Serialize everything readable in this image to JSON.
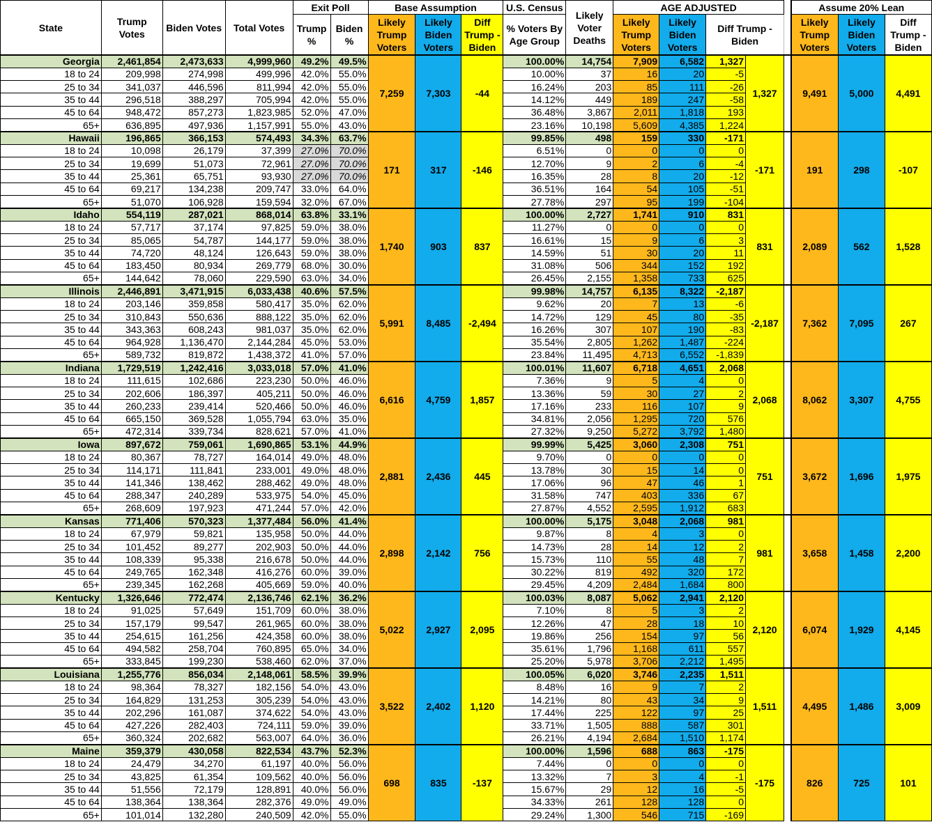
{
  "header": {
    "state": "State",
    "trump_votes": "Trump Votes",
    "biden_votes": "Biden Votes",
    "total_votes": "Total Votes",
    "exit_poll": "Exit Poll",
    "exit_trump": "Trump %",
    "exit_biden": "Biden %",
    "base_assumption": "Base Assumption",
    "likely_trump": "Likely Trump Voters",
    "likely_biden": "Likely Biden Voters",
    "diff": "Diff Trump - Biden",
    "us_census": "U.S. Census",
    "pct_voters": "% Voters By Age Group",
    "deaths": "Likely Voter Deaths",
    "age_adjusted": "AGE ADJUSTED",
    "lean": "Assume 20% Lean"
  },
  "colors": {
    "green": "#d3e3bd",
    "orange": "#ffb81c",
    "blue": "#12abeb",
    "yellow": "#ffff00"
  },
  "states": [
    {
      "name": "Georgia",
      "summary": [
        "2,461,854",
        "2,473,633",
        "4,999,960",
        "49.2%",
        "49.5%",
        "100.00%",
        "14,754",
        "7,909",
        "6,582",
        "1,327"
      ],
      "rows": [
        [
          "18 to 24",
          "209,998",
          "274,998",
          "499,996",
          "42.0%",
          "55.0%",
          "10.00%",
          "37",
          "16",
          "20",
          "-5"
        ],
        [
          "25 to 34",
          "341,037",
          "446,596",
          "811,994",
          "42.0%",
          "55.0%",
          "16.24%",
          "203",
          "85",
          "111",
          "-26"
        ],
        [
          "35 to 44",
          "296,518",
          "388,297",
          "705,994",
          "42.0%",
          "55.0%",
          "14.12%",
          "449",
          "189",
          "247",
          "-58"
        ],
        [
          "45 to 64",
          "948,472",
          "857,273",
          "1,823,985",
          "52.0%",
          "47.0%",
          "36.48%",
          "3,867",
          "2,011",
          "1,818",
          "193"
        ],
        [
          "65+",
          "636,895",
          "497,936",
          "1,157,991",
          "55.0%",
          "43.0%",
          "23.16%",
          "10,198",
          "5,609",
          "4,385",
          "1,224"
        ]
      ],
      "base": [
        "7,259",
        "7,303",
        "-44"
      ],
      "adj_total": "1,327",
      "lean": [
        "9,491",
        "5,000",
        "4,491"
      ]
    },
    {
      "name": "Hawaii",
      "summary": [
        "196,865",
        "366,153",
        "574,493",
        "34.3%",
        "63.7%",
        "99.85%",
        "498",
        "159",
        "330",
        "-171"
      ],
      "rows": [
        [
          "18 to 24",
          "10,098",
          "26,179",
          "37,399",
          "27.0%",
          "70.0%",
          "6.51%",
          "0",
          "0",
          "0",
          "0"
        ],
        [
          "25 to 34",
          "19,699",
          "51,073",
          "72,961",
          "27.0%",
          "70.0%",
          "12.70%",
          "9",
          "2",
          "6",
          "-4"
        ],
        [
          "35 to 44",
          "25,361",
          "65,751",
          "93,930",
          "27.0%",
          "70.0%",
          "16.35%",
          "28",
          "8",
          "20",
          "-12"
        ],
        [
          "45 to 64",
          "69,217",
          "134,238",
          "209,747",
          "33.0%",
          "64.0%",
          "36.51%",
          "164",
          "54",
          "105",
          "-51"
        ],
        [
          "65+",
          "51,070",
          "106,928",
          "159,594",
          "32.0%",
          "67.0%",
          "27.78%",
          "297",
          "95",
          "199",
          "-104"
        ]
      ],
      "estimated_rows": 3,
      "base": [
        "171",
        "317",
        "-146"
      ],
      "adj_total": "-171",
      "lean": [
        "191",
        "298",
        "-107"
      ]
    },
    {
      "name": "Idaho",
      "summary": [
        "554,119",
        "287,021",
        "868,014",
        "63.8%",
        "33.1%",
        "100.00%",
        "2,727",
        "1,741",
        "910",
        "831"
      ],
      "rows": [
        [
          "18 to 24",
          "57,717",
          "37,174",
          "97,825",
          "59.0%",
          "38.0%",
          "11.27%",
          "0",
          "0",
          "0",
          "0"
        ],
        [
          "25 to 34",
          "85,065",
          "54,787",
          "144,177",
          "59.0%",
          "38.0%",
          "16.61%",
          "15",
          "9",
          "6",
          "3"
        ],
        [
          "35 to 44",
          "74,720",
          "48,124",
          "126,643",
          "59.0%",
          "38.0%",
          "14.59%",
          "51",
          "30",
          "20",
          "11"
        ],
        [
          "45 to 64",
          "183,450",
          "80,934",
          "269,779",
          "68.0%",
          "30.0%",
          "31.08%",
          "506",
          "344",
          "152",
          "192"
        ],
        [
          "65+",
          "144,642",
          "78,060",
          "229,590",
          "63.0%",
          "34.0%",
          "26.45%",
          "2,155",
          "1,358",
          "733",
          "625"
        ]
      ],
      "base": [
        "1,740",
        "903",
        "837"
      ],
      "adj_total": "831",
      "lean": [
        "2,089",
        "562",
        "1,528"
      ]
    },
    {
      "name": "Illinois",
      "summary": [
        "2,446,891",
        "3,471,915",
        "6,033,438",
        "40.6%",
        "57.5%",
        "99.98%",
        "14,757",
        "6,135",
        "8,322",
        "-2,187"
      ],
      "rows": [
        [
          "18 to 24",
          "203,146",
          "359,858",
          "580,417",
          "35.0%",
          "62.0%",
          "9.62%",
          "20",
          "7",
          "13",
          "-6"
        ],
        [
          "25 to 34",
          "310,843",
          "550,636",
          "888,122",
          "35.0%",
          "62.0%",
          "14.72%",
          "129",
          "45",
          "80",
          "-35"
        ],
        [
          "35 to 44",
          "343,363",
          "608,243",
          "981,037",
          "35.0%",
          "62.0%",
          "16.26%",
          "307",
          "107",
          "190",
          "-83"
        ],
        [
          "45 to 64",
          "964,928",
          "1,136,470",
          "2,144,284",
          "45.0%",
          "53.0%",
          "35.54%",
          "2,805",
          "1,262",
          "1,487",
          "-224"
        ],
        [
          "65+",
          "589,732",
          "819,872",
          "1,438,372",
          "41.0%",
          "57.0%",
          "23.84%",
          "11,495",
          "4,713",
          "6,552",
          "-1,839"
        ]
      ],
      "base": [
        "5,991",
        "8,485",
        "-2,494"
      ],
      "adj_total": "-2,187",
      "lean": [
        "7,362",
        "7,095",
        "267"
      ]
    },
    {
      "name": "Indiana",
      "summary": [
        "1,729,519",
        "1,242,416",
        "3,033,018",
        "57.0%",
        "41.0%",
        "100.01%",
        "11,607",
        "6,718",
        "4,651",
        "2,068"
      ],
      "rows": [
        [
          "18 to 24",
          "111,615",
          "102,686",
          "223,230",
          "50.0%",
          "46.0%",
          "7.36%",
          "9",
          "5",
          "4",
          "0"
        ],
        [
          "25 to 34",
          "202,606",
          "186,397",
          "405,211",
          "50.0%",
          "46.0%",
          "13.36%",
          "59",
          "30",
          "27",
          "2"
        ],
        [
          "35 to 44",
          "260,233",
          "239,414",
          "520,466",
          "50.0%",
          "46.0%",
          "17.16%",
          "233",
          "116",
          "107",
          "9"
        ],
        [
          "45 to 64",
          "665,150",
          "369,528",
          "1,055,794",
          "63.0%",
          "35.0%",
          "34.81%",
          "2,056",
          "1,295",
          "720",
          "576"
        ],
        [
          "65+",
          "472,314",
          "339,734",
          "828,621",
          "57.0%",
          "41.0%",
          "27.32%",
          "9,250",
          "5,272",
          "3,792",
          "1,480"
        ]
      ],
      "base": [
        "6,616",
        "4,759",
        "1,857"
      ],
      "adj_total": "2,068",
      "lean": [
        "8,062",
        "3,307",
        "4,755"
      ]
    },
    {
      "name": "Iowa",
      "summary": [
        "897,672",
        "759,061",
        "1,690,865",
        "53.1%",
        "44.9%",
        "99.99%",
        "5,425",
        "3,060",
        "2,308",
        "751"
      ],
      "rows": [
        [
          "18 to 24",
          "80,367",
          "78,727",
          "164,014",
          "49.0%",
          "48.0%",
          "9.70%",
          "0",
          "0",
          "0",
          "0"
        ],
        [
          "25 to 34",
          "114,171",
          "111,841",
          "233,001",
          "49.0%",
          "48.0%",
          "13.78%",
          "30",
          "15",
          "14",
          "0"
        ],
        [
          "35 to 44",
          "141,346",
          "138,462",
          "288,462",
          "49.0%",
          "48.0%",
          "17.06%",
          "96",
          "47",
          "46",
          "1"
        ],
        [
          "45 to 64",
          "288,347",
          "240,289",
          "533,975",
          "54.0%",
          "45.0%",
          "31.58%",
          "747",
          "403",
          "336",
          "67"
        ],
        [
          "65+",
          "268,609",
          "197,923",
          "471,244",
          "57.0%",
          "42.0%",
          "27.87%",
          "4,552",
          "2,595",
          "1,912",
          "683"
        ]
      ],
      "base": [
        "2,881",
        "2,436",
        "445"
      ],
      "adj_total": "751",
      "lean": [
        "3,672",
        "1,696",
        "1,975"
      ]
    },
    {
      "name": "Kansas",
      "summary": [
        "771,406",
        "570,323",
        "1,377,484",
        "56.0%",
        "41.4%",
        "100.00%",
        "5,175",
        "3,048",
        "2,068",
        "981"
      ],
      "rows": [
        [
          "18 to 24",
          "67,979",
          "59,821",
          "135,958",
          "50.0%",
          "44.0%",
          "9.87%",
          "8",
          "4",
          "3",
          "0"
        ],
        [
          "25 to 34",
          "101,452",
          "89,277",
          "202,903",
          "50.0%",
          "44.0%",
          "14.73%",
          "28",
          "14",
          "12",
          "2"
        ],
        [
          "35 to 44",
          "108,339",
          "95,338",
          "216,678",
          "50.0%",
          "44.0%",
          "15.73%",
          "110",
          "55",
          "48",
          "7"
        ],
        [
          "45 to 64",
          "249,765",
          "162,348",
          "416,276",
          "60.0%",
          "39.0%",
          "30.22%",
          "819",
          "492",
          "320",
          "172"
        ],
        [
          "65+",
          "239,345",
          "162,268",
          "405,669",
          "59.0%",
          "40.0%",
          "29.45%",
          "4,209",
          "2,484",
          "1,684",
          "800"
        ]
      ],
      "base": [
        "2,898",
        "2,142",
        "756"
      ],
      "adj_total": "981",
      "lean": [
        "3,658",
        "1,458",
        "2,200"
      ]
    },
    {
      "name": "Kentucky",
      "summary": [
        "1,326,646",
        "772,474",
        "2,136,746",
        "62.1%",
        "36.2%",
        "100.03%",
        "8,087",
        "5,062",
        "2,941",
        "2,120"
      ],
      "rows": [
        [
          "18 to 24",
          "91,025",
          "57,649",
          "151,709",
          "60.0%",
          "38.0%",
          "7.10%",
          "8",
          "5",
          "3",
          "2"
        ],
        [
          "25 to 34",
          "157,179",
          "99,547",
          "261,965",
          "60.0%",
          "38.0%",
          "12.26%",
          "47",
          "28",
          "18",
          "10"
        ],
        [
          "35 to 44",
          "254,615",
          "161,256",
          "424,358",
          "60.0%",
          "38.0%",
          "19.86%",
          "256",
          "154",
          "97",
          "56"
        ],
        [
          "45 to 64",
          "494,582",
          "258,704",
          "760,895",
          "65.0%",
          "34.0%",
          "35.61%",
          "1,796",
          "1,168",
          "611",
          "557"
        ],
        [
          "65+",
          "333,845",
          "199,230",
          "538,460",
          "62.0%",
          "37.0%",
          "25.20%",
          "5,978",
          "3,706",
          "2,212",
          "1,495"
        ]
      ],
      "base": [
        "5,022",
        "2,927",
        "2,095"
      ],
      "adj_total": "2,120",
      "lean": [
        "6,074",
        "1,929",
        "4,145"
      ]
    },
    {
      "name": "Louisiana",
      "summary": [
        "1,255,776",
        "856,034",
        "2,148,061",
        "58.5%",
        "39.9%",
        "100.05%",
        "6,020",
        "3,746",
        "2,235",
        "1,511"
      ],
      "rows": [
        [
          "18 to 24",
          "98,364",
          "78,327",
          "182,156",
          "54.0%",
          "43.0%",
          "8.48%",
          "16",
          "9",
          "7",
          "2"
        ],
        [
          "25 to 34",
          "164,829",
          "131,253",
          "305,239",
          "54.0%",
          "43.0%",
          "14.21%",
          "80",
          "43",
          "34",
          "9"
        ],
        [
          "35 to 44",
          "202,296",
          "161,087",
          "374,622",
          "54.0%",
          "43.0%",
          "17.44%",
          "225",
          "122",
          "97",
          "25"
        ],
        [
          "45 to 64",
          "427,226",
          "282,403",
          "724,111",
          "59.0%",
          "39.0%",
          "33.71%",
          "1,505",
          "888",
          "587",
          "301"
        ],
        [
          "65+",
          "360,324",
          "202,682",
          "563,007",
          "64.0%",
          "36.0%",
          "26.21%",
          "4,194",
          "2,684",
          "1,510",
          "1,174"
        ]
      ],
      "base": [
        "3,522",
        "2,402",
        "1,120"
      ],
      "adj_total": "1,511",
      "lean": [
        "4,495",
        "1,486",
        "3,009"
      ]
    },
    {
      "name": "Maine",
      "summary": [
        "359,379",
        "430,058",
        "822,534",
        "43.7%",
        "52.3%",
        "100.00%",
        "1,596",
        "688",
        "863",
        "-175"
      ],
      "rows": [
        [
          "18 to 24",
          "24,479",
          "34,270",
          "61,197",
          "40.0%",
          "56.0%",
          "7.44%",
          "0",
          "0",
          "0",
          "0"
        ],
        [
          "25 to 34",
          "43,825",
          "61,354",
          "109,562",
          "40.0%",
          "56.0%",
          "13.32%",
          "7",
          "3",
          "4",
          "-1"
        ],
        [
          "35 to 44",
          "51,556",
          "72,179",
          "128,891",
          "40.0%",
          "56.0%",
          "15.67%",
          "29",
          "12",
          "16",
          "-5"
        ],
        [
          "45 to 64",
          "138,364",
          "138,364",
          "282,376",
          "49.0%",
          "49.0%",
          "34.33%",
          "261",
          "128",
          "128",
          "0"
        ],
        [
          "65+",
          "101,014",
          "132,280",
          "240,509",
          "42.0%",
          "55.0%",
          "29.24%",
          "1,300",
          "546",
          "715",
          "-169"
        ]
      ],
      "base": [
        "698",
        "835",
        "-137"
      ],
      "adj_total": "-175",
      "lean": [
        "826",
        "725",
        "101"
      ]
    }
  ]
}
